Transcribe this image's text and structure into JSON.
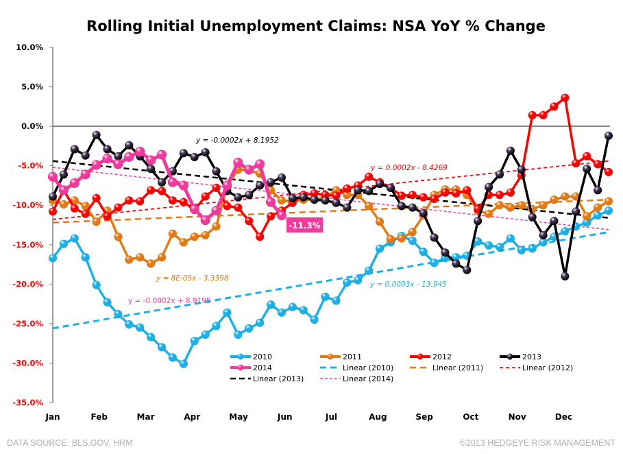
{
  "chart_data": {
    "type": "line",
    "title": "Rolling Initial Unemployment Claims: NSA YoY % Change",
    "xlabel": "",
    "ylabel": "",
    "x_tick_labels": [
      "Jan",
      "Feb",
      "Mar",
      "Apr",
      "May",
      "Jun",
      "Jul",
      "Aug",
      "Sep",
      "Oct",
      "Nov",
      "Dec"
    ],
    "y_tick_labels": [
      "10.0%",
      "5.0%",
      "0.0%",
      "-5.0%",
      "-10.0%",
      "-15.0%",
      "-20.0%",
      "-25.0%",
      "-30.0%",
      "-35.0%"
    ],
    "ylim": [
      -35,
      10
    ],
    "y_unit": "%",
    "x_unit": "week of year (1-52)",
    "grid": false,
    "legend_placement": "bottom-right inside plot",
    "series": [
      {
        "name": "2010",
        "color": "#1bb0e8",
        "marker": true,
        "values": [
          -16.7,
          -14.9,
          -14.2,
          -16.6,
          -20.1,
          -22.3,
          -23.8,
          -25.1,
          -25.5,
          -26.7,
          -28.0,
          -29.3,
          -30.1,
          -27.2,
          -26.4,
          -25.3,
          -23.6,
          -26.4,
          -25.6,
          -24.9,
          -22.6,
          -23.6,
          -22.9,
          -23.3,
          -24.5,
          -21.6,
          -22.1,
          -19.8,
          -19.5,
          -18.3,
          -15.5,
          -14.7,
          -13.9,
          -14.5,
          -15.9,
          -17.3,
          -16.7,
          -16.6,
          -16.4,
          -14.6,
          -15.1,
          -15.3,
          -14.2,
          -15.7,
          -15.5,
          -14.7,
          -14.0,
          -13.3,
          -12.7,
          -12.2,
          -11.3,
          -10.7
        ]
      },
      {
        "name": "2011",
        "color": "#e57a12",
        "marker": true,
        "values": [
          -9.4,
          -9.9,
          -9.4,
          -10.1,
          -12.1,
          -10.7,
          -14.0,
          -16.9,
          -16.6,
          -17.4,
          -16.6,
          -13.6,
          -14.7,
          -14.0,
          -13.8,
          -12.7,
          -7.5,
          -5.5,
          -5.6,
          -6.0,
          -8.1,
          -9.4,
          -9.5,
          -9.3,
          -9.3,
          -9.0,
          -8.1,
          -8.7,
          -8.7,
          -10.1,
          -12.1,
          -14.3,
          -14.2,
          -13.4,
          -11.3,
          -8.7,
          -8.0,
          -8.0,
          -8.7,
          -10.7,
          -11.1,
          -10.0,
          -10.3,
          -10.0,
          -10.5,
          -10.0,
          -9.3,
          -8.9,
          -8.9,
          -11.4,
          -10.3,
          -9.5
        ]
      },
      {
        "name": "2012",
        "color": "#ff0000",
        "marker": true,
        "values": [
          -10.8,
          -8.1,
          -10.4,
          -11.1,
          -9.1,
          -11.4,
          -10.3,
          -9.4,
          -9.5,
          -8.1,
          -8.2,
          -9.4,
          -9.6,
          -10.6,
          -8.9,
          -7.8,
          -10.1,
          -10.3,
          -12.0,
          -14.0,
          -11.4,
          -10.7,
          -9.7,
          -8.7,
          -8.5,
          -8.7,
          -8.8,
          -7.9,
          -7.5,
          -6.4,
          -7.1,
          -7.8,
          -8.8,
          -8.7,
          -9.0,
          -9.2,
          -8.4,
          -8.5,
          -8.1,
          -10.5,
          -8.7,
          -8.7,
          -8.4,
          -6.2,
          1.4,
          1.4,
          2.5,
          3.6,
          -4.7,
          -3.8,
          -4.8,
          -5.8
        ]
      },
      {
        "name": "2013",
        "color": "#000000",
        "marker": true,
        "values": [
          -8.9,
          -6.1,
          -2.9,
          -3.7,
          -1.1,
          -2.9,
          -3.8,
          -2.4,
          -3.8,
          -5.4,
          -7.1,
          -5.7,
          -3.4,
          -3.9,
          -3.3,
          -5.7,
          -8.2,
          -9.0,
          -8.7,
          -7.5,
          -7.1,
          -6.5,
          -9.1,
          -9.0,
          -9.3,
          -9.4,
          -9.7,
          -10.3,
          -8.1,
          -8.2,
          -7.3,
          -7.8,
          -10.1,
          -10.3,
          -11.0,
          -14.1,
          -16.0,
          -17.4,
          -18.2,
          -12.0,
          -7.7,
          -6.1,
          -3.1,
          -5.5,
          -11.5,
          -13.8,
          -12.0,
          -19.0,
          -10.8,
          -5.4,
          -8.1,
          -1.2
        ]
      },
      {
        "name": "2014",
        "color": "#f2399c",
        "marker": true,
        "values": [
          -6.4,
          -8.1,
          -7.2,
          -6.1,
          -4.9,
          -4.1,
          -4.8,
          -3.9,
          -3.2,
          -4.3,
          -3.6,
          -7.1,
          -7.5,
          -10.5,
          -11.9,
          -10.7,
          -7.5,
          -4.6,
          -5.5,
          -4.8,
          -9.6,
          -11.3
        ]
      }
    ],
    "trendlines": [
      {
        "name": "Linear (2010)",
        "color": "#1bb0e8",
        "start": -25.6,
        "end": -13.4,
        "equation": "y = 0.0003x - 13.945"
      },
      {
        "name": "Linear (2011)",
        "color": "#e57a12",
        "start": -12.2,
        "end": -9.3,
        "equation": "y = 8E-05x - 3.3398"
      },
      {
        "name": "Linear (2012)",
        "color": "#ff0000",
        "start": -11.8,
        "end": -4.4,
        "equation": "y = 0.0002x - 8.4269"
      },
      {
        "name": "Linear (2013)",
        "color": "#000000",
        "start": -4.4,
        "end": -11.6,
        "equation": "y = -0.0002x + 8.1952"
      },
      {
        "name": "Linear (2014)",
        "color": "#f2399c",
        "start": -5.2,
        "end": -13.1,
        "equation": "y = -0.0002x + 8.9195"
      }
    ],
    "annotations": [
      {
        "text": "-11.3%",
        "series": "2014",
        "color": "#f2399c"
      }
    ],
    "legend": [
      "2010",
      "2011",
      "2012",
      "2013",
      "2014",
      "Linear (2010)",
      "Linear (2011)",
      "Linear (2012)",
      "Linear (2013)",
      "Linear (2014)"
    ]
  },
  "footer": {
    "source": "DATA SOURCE:  BLS.GOV, HRM",
    "copyright": "©2013 HEDGEYE RISK MANAGEMENT"
  },
  "colors": {
    "negative_tick": "#ff0000",
    "positive_tick": "#000000",
    "zero_line": "#808080"
  }
}
